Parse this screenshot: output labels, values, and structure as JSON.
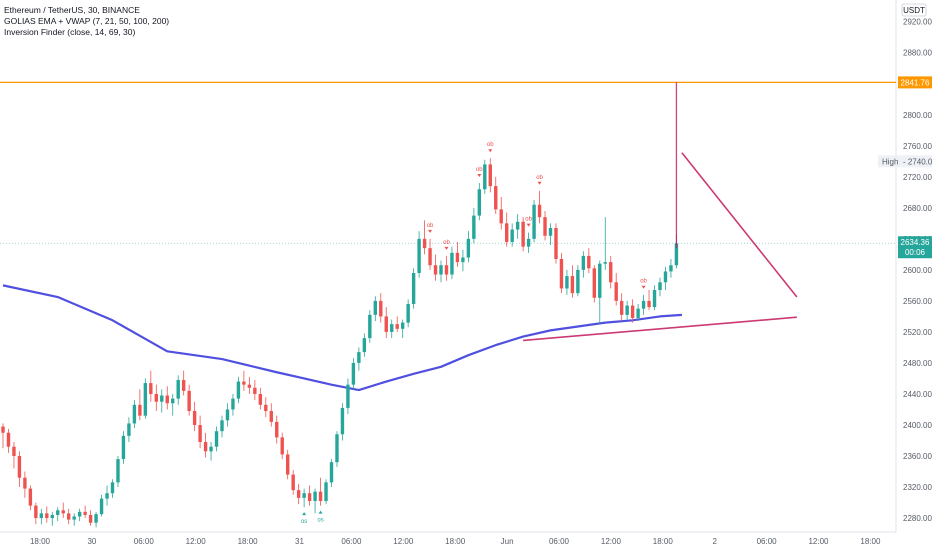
{
  "header": {
    "symbol_line": "Ethereum / TetherUS, 30, BINANCE",
    "indicator_1": "GOLIAS EMA + VWAP (7, 21, 50, 100, 200)",
    "indicator_2": "Inversion Finder (close, 14, 69, 30)"
  },
  "currency_badge": "USDT",
  "colors": {
    "up": "#26a69a",
    "down": "#ef5350",
    "ema": "#5050e0",
    "resistance_line": "#ff9800",
    "trendline": "#c2185b",
    "price_badge": "#26a69a"
  },
  "chart_data": {
    "type": "candlestick",
    "y_axis_ticks": [
      "2920.00",
      "2880.00",
      "2840.00",
      "2800.00",
      "2760.00",
      "2720.00",
      "2680.00",
      "2640.00",
      "2600.00",
      "2560.00",
      "2520.00",
      "2480.00",
      "2440.00",
      "2400.00",
      "2360.00",
      "2320.00",
      "2280.00"
    ],
    "x_axis_ticks": [
      "18:00",
      "30",
      "06:00",
      "12:00",
      "18:00",
      "31",
      "06:00",
      "12:00",
      "18:00",
      "Jun",
      "06:00",
      "12:00",
      "18:00",
      "2",
      "06:00",
      "12:00",
      "18:00"
    ],
    "ylim": [
      2262,
      2948
    ],
    "x_range_index": [
      0,
      160
    ],
    "candles": [
      [
        2398,
        2402,
        2370,
        2390
      ],
      [
        2390,
        2395,
        2364,
        2372
      ],
      [
        2372,
        2378,
        2344,
        2360
      ],
      [
        2360,
        2366,
        2320,
        2332
      ],
      [
        2332,
        2340,
        2306,
        2318
      ],
      [
        2318,
        2322,
        2290,
        2296
      ],
      [
        2296,
        2300,
        2272,
        2280
      ],
      [
        2280,
        2292,
        2272,
        2286
      ],
      [
        2286,
        2295,
        2274,
        2280
      ],
      [
        2280,
        2288,
        2270,
        2284
      ],
      [
        2284,
        2294,
        2276,
        2290
      ],
      [
        2290,
        2300,
        2280,
        2286
      ],
      [
        2286,
        2292,
        2272,
        2278
      ],
      [
        2278,
        2286,
        2270,
        2282
      ],
      [
        2282,
        2292,
        2276,
        2288
      ],
      [
        2288,
        2296,
        2280,
        2284
      ],
      [
        2284,
        2290,
        2270,
        2274
      ],
      [
        2274,
        2288,
        2268,
        2285
      ],
      [
        2285,
        2310,
        2282,
        2305
      ],
      [
        2305,
        2322,
        2296,
        2312
      ],
      [
        2312,
        2330,
        2306,
        2326
      ],
      [
        2326,
        2360,
        2320,
        2356
      ],
      [
        2356,
        2392,
        2350,
        2386
      ],
      [
        2386,
        2410,
        2378,
        2402
      ],
      [
        2402,
        2432,
        2396,
        2426
      ],
      [
        2426,
        2446,
        2406,
        2412
      ],
      [
        2412,
        2460,
        2408,
        2454
      ],
      [
        2454,
        2470,
        2430,
        2440
      ],
      [
        2440,
        2452,
        2418,
        2430
      ],
      [
        2430,
        2446,
        2416,
        2438
      ],
      [
        2438,
        2450,
        2420,
        2428
      ],
      [
        2428,
        2440,
        2412,
        2434
      ],
      [
        2434,
        2464,
        2426,
        2458
      ],
      [
        2458,
        2470,
        2438,
        2444
      ],
      [
        2444,
        2452,
        2412,
        2418
      ],
      [
        2418,
        2430,
        2392,
        2400
      ],
      [
        2400,
        2412,
        2370,
        2378
      ],
      [
        2378,
        2390,
        2358,
        2366
      ],
      [
        2366,
        2378,
        2354,
        2372
      ],
      [
        2372,
        2398,
        2366,
        2392
      ],
      [
        2392,
        2412,
        2384,
        2406
      ],
      [
        2406,
        2428,
        2398,
        2420
      ],
      [
        2420,
        2440,
        2412,
        2434
      ],
      [
        2434,
        2462,
        2428,
        2456
      ],
      [
        2456,
        2470,
        2444,
        2452
      ],
      [
        2452,
        2462,
        2440,
        2448
      ],
      [
        2448,
        2458,
        2432,
        2440
      ],
      [
        2440,
        2448,
        2420,
        2426
      ],
      [
        2426,
        2436,
        2410,
        2418
      ],
      [
        2418,
        2428,
        2398,
        2404
      ],
      [
        2404,
        2412,
        2376,
        2384
      ],
      [
        2384,
        2390,
        2356,
        2362
      ],
      [
        2362,
        2368,
        2330,
        2336
      ],
      [
        2336,
        2342,
        2310,
        2316
      ],
      [
        2316,
        2324,
        2298,
        2306
      ],
      [
        2306,
        2318,
        2294,
        2312
      ],
      [
        2312,
        2322,
        2296,
        2302
      ],
      [
        2302,
        2318,
        2286,
        2314
      ],
      [
        2314,
        2332,
        2296,
        2302
      ],
      [
        2302,
        2330,
        2298,
        2326
      ],
      [
        2326,
        2356,
        2320,
        2352
      ],
      [
        2352,
        2392,
        2346,
        2388
      ],
      [
        2388,
        2428,
        2380,
        2422
      ],
      [
        2422,
        2460,
        2414,
        2452
      ],
      [
        2452,
        2486,
        2446,
        2480
      ],
      [
        2480,
        2500,
        2470,
        2494
      ],
      [
        2494,
        2518,
        2488,
        2512
      ],
      [
        2512,
        2548,
        2506,
        2542
      ],
      [
        2542,
        2566,
        2534,
        2560
      ],
      [
        2560,
        2570,
        2532,
        2540
      ],
      [
        2540,
        2552,
        2512,
        2520
      ],
      [
        2520,
        2536,
        2512,
        2530
      ],
      [
        2530,
        2540,
        2520,
        2524
      ],
      [
        2524,
        2536,
        2512,
        2532
      ],
      [
        2532,
        2562,
        2526,
        2556
      ],
      [
        2556,
        2602,
        2550,
        2596
      ],
      [
        2596,
        2650,
        2590,
        2640
      ],
      [
        2640,
        2664,
        2620,
        2628
      ],
      [
        2628,
        2640,
        2600,
        2606
      ],
      [
        2606,
        2620,
        2586,
        2594
      ],
      [
        2594,
        2612,
        2584,
        2606
      ],
      [
        2606,
        2618,
        2586,
        2594
      ],
      [
        2594,
        2630,
        2588,
        2622
      ],
      [
        2622,
        2636,
        2604,
        2610
      ],
      [
        2610,
        2626,
        2598,
        2616
      ],
      [
        2616,
        2650,
        2610,
        2640
      ],
      [
        2640,
        2680,
        2634,
        2670
      ],
      [
        2670,
        2712,
        2664,
        2704
      ],
      [
        2704,
        2742,
        2698,
        2736
      ],
      [
        2736,
        2744,
        2700,
        2708
      ],
      [
        2708,
        2720,
        2672,
        2678
      ],
      [
        2678,
        2694,
        2652,
        2660
      ],
      [
        2660,
        2674,
        2630,
        2636
      ],
      [
        2636,
        2660,
        2630,
        2652
      ],
      [
        2652,
        2672,
        2640,
        2662
      ],
      [
        2662,
        2668,
        2624,
        2630
      ],
      [
        2630,
        2648,
        2622,
        2640
      ],
      [
        2640,
        2690,
        2636,
        2684
      ],
      [
        2684,
        2702,
        2660,
        2668
      ],
      [
        2668,
        2676,
        2638,
        2644
      ],
      [
        2644,
        2660,
        2632,
        2654
      ],
      [
        2654,
        2660,
        2608,
        2614
      ],
      [
        2614,
        2622,
        2570,
        2576
      ],
      [
        2576,
        2600,
        2568,
        2592
      ],
      [
        2592,
        2606,
        2564,
        2570
      ],
      [
        2570,
        2606,
        2566,
        2600
      ],
      [
        2600,
        2624,
        2590,
        2618
      ],
      [
        2618,
        2628,
        2596,
        2602
      ],
      [
        2602,
        2606,
        2558,
        2564
      ],
      [
        2564,
        2612,
        2530,
        2608
      ],
      [
        2608,
        2668,
        2600,
        2610
      ],
      [
        2610,
        2618,
        2576,
        2584
      ],
      [
        2584,
        2596,
        2554,
        2560
      ],
      [
        2560,
        2570,
        2534,
        2542
      ],
      [
        2542,
        2560,
        2536,
        2554
      ],
      [
        2554,
        2562,
        2532,
        2538
      ],
      [
        2538,
        2556,
        2534,
        2550
      ],
      [
        2550,
        2568,
        2542,
        2560
      ],
      [
        2560,
        2574,
        2548,
        2552
      ],
      [
        2552,
        2580,
        2548,
        2574
      ],
      [
        2574,
        2590,
        2566,
        2584
      ],
      [
        2584,
        2604,
        2574,
        2598
      ],
      [
        2598,
        2614,
        2590,
        2606
      ],
      [
        2606,
        2646,
        2602,
        2634
      ]
    ],
    "ema_200": {
      "x": [
        0,
        10,
        20,
        30,
        40,
        50,
        55,
        60,
        65,
        70,
        75,
        80,
        85,
        90,
        95,
        100,
        105,
        110,
        115,
        120,
        124
      ],
      "y": [
        2580,
        2565,
        2535,
        2495,
        2485,
        2468,
        2460,
        2452,
        2445,
        2456,
        2466,
        2475,
        2490,
        2503,
        2514,
        2522,
        2527,
        2532,
        2535,
        2540,
        2542
      ]
    },
    "resistance_level": 2841.76,
    "resistance_label": "2841.76",
    "current_price_label": "2634.36",
    "countdown_label": "00:06",
    "high_label": "High",
    "high_value_label": "2740.00",
    "upper_trendline": {
      "x": [
        124,
        145
      ],
      "y": [
        2751,
        2565
      ]
    },
    "lower_trendline": {
      "x": [
        95,
        145
      ],
      "y": [
        2509,
        2539
      ]
    },
    "vertical_marker": {
      "x": 123,
      "y": [
        2628,
        2841.76
      ]
    },
    "signals": [
      {
        "i": 78,
        "text": "ob",
        "side": "top"
      },
      {
        "i": 81,
        "text": "ob",
        "side": "top"
      },
      {
        "i": 87,
        "text": "ob",
        "side": "top"
      },
      {
        "i": 89,
        "text": "ob",
        "side": "top"
      },
      {
        "i": 96,
        "text": "ob",
        "side": "top"
      },
      {
        "i": 98,
        "text": "ob",
        "side": "top"
      },
      {
        "i": 117,
        "text": "ob",
        "side": "top"
      },
      {
        "i": 55,
        "text": "os",
        "side": "bottom"
      },
      {
        "i": 58,
        "text": "os",
        "side": "bottom"
      }
    ]
  }
}
